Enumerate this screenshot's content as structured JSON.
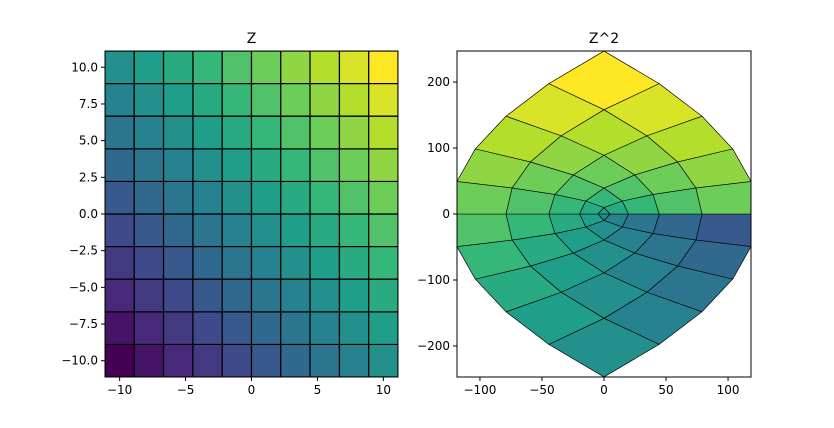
{
  "chart_data": [
    {
      "type": "pcolormesh",
      "title": "Z",
      "cmap": "viridis",
      "clim": [
        -20,
        20
      ],
      "edgecolor": "#000000",
      "x_edges": [
        -11.11,
        -8.89,
        -6.67,
        -4.44,
        -2.22,
        0,
        2.22,
        4.44,
        6.67,
        8.89,
        11.11
      ],
      "y_edges": [
        -11.11,
        -8.89,
        -6.67,
        -4.44,
        -2.22,
        0,
        2.22,
        4.44,
        6.67,
        8.89,
        11.11
      ],
      "values": [
        [
          -20,
          -17.78,
          -15.56,
          -13.33,
          -11.11,
          -8.89,
          -6.67,
          -4.44,
          -2.22,
          0
        ],
        [
          -17.78,
          -15.56,
          -13.33,
          -11.11,
          -8.89,
          -6.67,
          -4.44,
          -2.22,
          0,
          2.22
        ],
        [
          -15.56,
          -13.33,
          -11.11,
          -8.89,
          -6.67,
          -4.44,
          -2.22,
          0,
          2.22,
          4.44
        ],
        [
          -13.33,
          -11.11,
          -8.89,
          -6.67,
          -4.44,
          -2.22,
          0,
          2.22,
          4.44,
          6.67
        ],
        [
          -11.11,
          -8.89,
          -6.67,
          -4.44,
          -2.22,
          0,
          2.22,
          4.44,
          6.67,
          8.89
        ],
        [
          -8.89,
          -6.67,
          -4.44,
          -2.22,
          0,
          2.22,
          4.44,
          6.67,
          8.89,
          11.11
        ],
        [
          -6.67,
          -4.44,
          -2.22,
          0,
          2.22,
          4.44,
          6.67,
          8.89,
          11.11,
          13.33
        ],
        [
          -4.44,
          -2.22,
          0,
          2.22,
          4.44,
          6.67,
          8.89,
          11.11,
          13.33,
          15.56
        ],
        [
          -2.22,
          0,
          2.22,
          4.44,
          6.67,
          8.89,
          11.11,
          13.33,
          15.56,
          17.78
        ],
        [
          0,
          2.22,
          4.44,
          6.67,
          8.89,
          11.11,
          13.33,
          15.56,
          17.78,
          20
        ]
      ],
      "xlim": [
        -11.11,
        11.11
      ],
      "ylim": [
        -11.11,
        11.11
      ],
      "xticks": [
        {
          "value": -10,
          "label": "−10"
        },
        {
          "value": -5,
          "label": "−5"
        },
        0,
        5,
        10
      ],
      "yticks": [
        {
          "value": -10,
          "label": "−10.0"
        },
        {
          "value": -7.5,
          "label": "−7.5"
        },
        {
          "value": -5,
          "label": "−5.0"
        },
        {
          "value": -2.5,
          "label": "−2.5"
        },
        {
          "value": 0,
          "label": "0.0"
        },
        2.5,
        {
          "value": 5,
          "label": "5.0"
        },
        7.5,
        {
          "value": 10,
          "label": "10.0"
        }
      ]
    },
    {
      "type": "pcolormesh",
      "title": "Z^2",
      "cmap": "viridis",
      "clim": [
        -20,
        20
      ],
      "edgecolor": "#000000",
      "squared": true,
      "xlim": [
        -118.5,
        118.5
      ],
      "ylim": [
        -247,
        247
      ],
      "xticks": [
        {
          "value": -100,
          "label": "−100"
        },
        {
          "value": -50,
          "label": "−50"
        },
        0,
        50,
        100
      ],
      "yticks": [
        {
          "value": -200,
          "label": "−200"
        },
        {
          "value": -100,
          "label": "−100"
        },
        0,
        100,
        200
      ]
    }
  ]
}
